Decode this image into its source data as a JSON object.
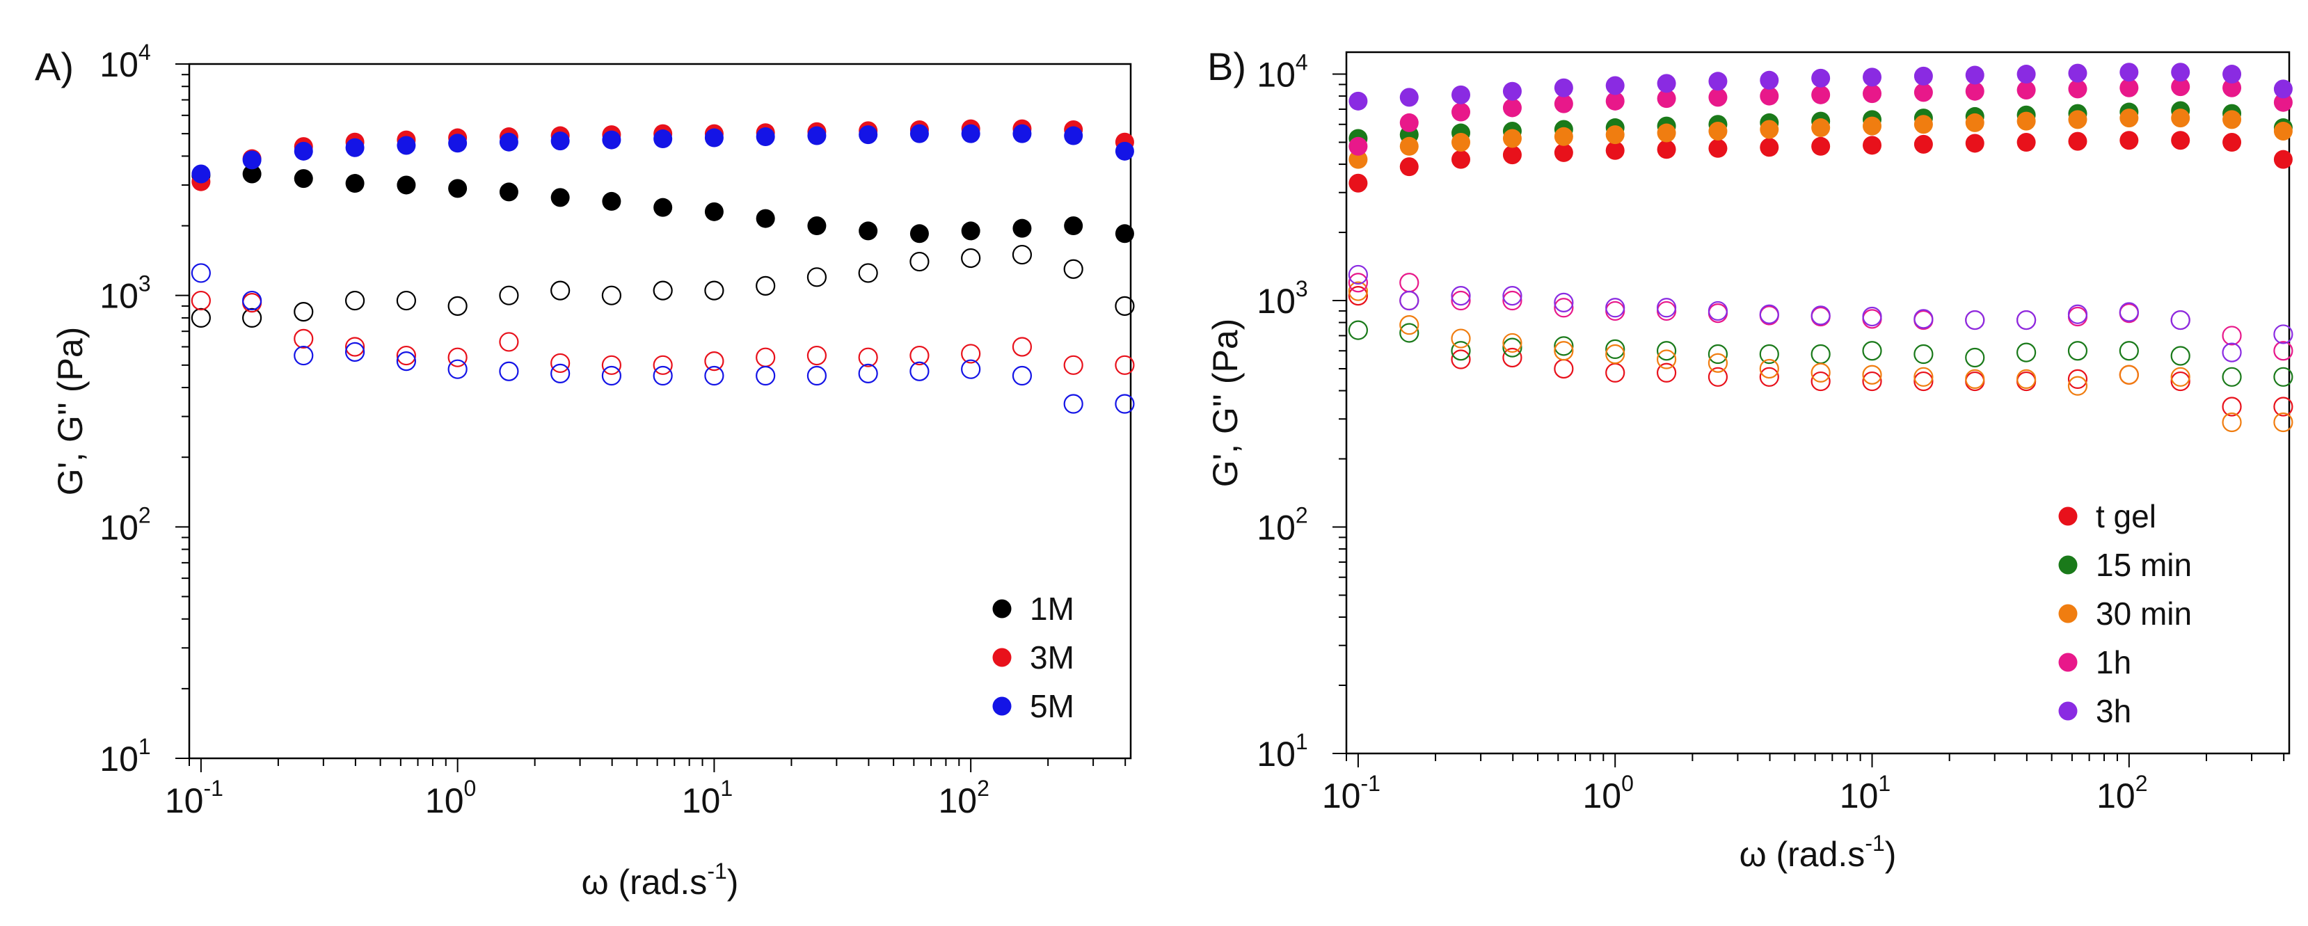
{
  "figure": {
    "panels": [
      "A)",
      "B)"
    ]
  },
  "chart_data": [
    {
      "panel": "A)",
      "type": "scatter",
      "title": "",
      "xlabel": "ω (rad.s",
      "xlabel_superscript": "-1",
      "xlabel_suffix": ")",
      "ylabel": "G', G'' (Pa)",
      "xscale": "log",
      "yscale": "log",
      "xlim": [
        0.09,
        420
      ],
      "ylim": [
        10,
        10000
      ],
      "x_ticks": [
        {
          "value": 0.1,
          "base": "10",
          "exp": "-1"
        },
        {
          "value": 1,
          "base": "10",
          "exp": "0"
        },
        {
          "value": 10,
          "base": "10",
          "exp": "1"
        },
        {
          "value": 100,
          "base": "10",
          "exp": "2"
        }
      ],
      "y_ticks": [
        {
          "value": 10,
          "base": "10",
          "exp": "1"
        },
        {
          "value": 100,
          "base": "10",
          "exp": "2"
        },
        {
          "value": 1000,
          "base": "10",
          "exp": "3"
        },
        {
          "value": 10000,
          "base": "10",
          "exp": "4"
        }
      ],
      "legend_position": "bottom-right",
      "legend": [
        {
          "label": "1M",
          "color": "#000000"
        },
        {
          "label": "3M",
          "color": "#e8111b"
        },
        {
          "label": "5M",
          "color": "#1414e6"
        }
      ],
      "x": [
        0.1,
        0.158,
        0.251,
        0.398,
        0.631,
        1.0,
        1.585,
        2.512,
        3.981,
        6.31,
        10.0,
        15.85,
        25.12,
        39.81,
        63.1,
        100.0,
        158.5,
        251.2,
        398.1
      ],
      "series": [
        {
          "name": "1M G'",
          "legend": "1M",
          "modulus": "G'",
          "filled": true,
          "color": "#000000",
          "values": [
            3300,
            3350,
            3200,
            3050,
            3000,
            2900,
            2800,
            2650,
            2550,
            2400,
            2300,
            2150,
            2000,
            1900,
            1850,
            1900,
            1950,
            2000,
            1850
          ]
        },
        {
          "name": "3M G'",
          "legend": "3M",
          "modulus": "G'",
          "filled": true,
          "color": "#e8111b",
          "values": [
            3100,
            3900,
            4400,
            4600,
            4700,
            4800,
            4850,
            4900,
            4950,
            5000,
            5000,
            5050,
            5100,
            5150,
            5200,
            5250,
            5250,
            5200,
            4600
          ]
        },
        {
          "name": "5M G'",
          "legend": "5M",
          "modulus": "G'",
          "filled": true,
          "color": "#1414e6",
          "values": [
            3350,
            3850,
            4200,
            4350,
            4450,
            4550,
            4600,
            4650,
            4700,
            4750,
            4800,
            4850,
            4900,
            4950,
            5000,
            5000,
            5000,
            4900,
            4200
          ]
        },
        {
          "name": "1M G''",
          "legend": "1M",
          "modulus": "G''",
          "filled": false,
          "color": "#000000",
          "values": [
            800,
            800,
            850,
            950,
            950,
            900,
            1000,
            1050,
            1000,
            1050,
            1050,
            1100,
            1200,
            1250,
            1400,
            1450,
            1500,
            1300,
            900
          ]
        },
        {
          "name": "3M G''",
          "legend": "3M",
          "modulus": "G''",
          "filled": false,
          "color": "#e8111b",
          "values": [
            950,
            930,
            650,
            600,
            550,
            540,
            630,
            510,
            500,
            500,
            520,
            540,
            550,
            540,
            550,
            560,
            600,
            500,
            500
          ]
        },
        {
          "name": "5M G''",
          "legend": "5M",
          "modulus": "G''",
          "filled": false,
          "color": "#1414e6",
          "values": [
            1250,
            950,
            550,
            570,
            520,
            480,
            470,
            460,
            450,
            450,
            450,
            450,
            450,
            460,
            470,
            480,
            450,
            340,
            340
          ]
        }
      ]
    },
    {
      "panel": "B)",
      "type": "scatter",
      "title": "",
      "xlabel": "ω (rad.s",
      "xlabel_superscript": "-1",
      "xlabel_suffix": ")",
      "ylabel": "G', G'' (Pa)",
      "xscale": "log",
      "yscale": "log",
      "xlim": [
        0.09,
        420
      ],
      "ylim": [
        10,
        12500
      ],
      "x_ticks": [
        {
          "value": 0.1,
          "base": "10",
          "exp": "-1"
        },
        {
          "value": 1,
          "base": "10",
          "exp": "0"
        },
        {
          "value": 10,
          "base": "10",
          "exp": "1"
        },
        {
          "value": 100,
          "base": "10",
          "exp": "2"
        }
      ],
      "y_ticks": [
        {
          "value": 10,
          "base": "10",
          "exp": "1"
        },
        {
          "value": 100,
          "base": "10",
          "exp": "2"
        },
        {
          "value": 1000,
          "base": "10",
          "exp": "3"
        },
        {
          "value": 10000,
          "base": "10",
          "exp": "4"
        }
      ],
      "legend_position": "bottom-right",
      "legend": [
        {
          "label": "t gel",
          "color": "#e8111b"
        },
        {
          "label": "15 min",
          "color": "#1a7a1a"
        },
        {
          "label": "30 min",
          "color": "#f07d10"
        },
        {
          "label": "1h",
          "color": "#e8188a"
        },
        {
          "label": "3h",
          "color": "#8a2be2"
        }
      ],
      "x": [
        0.1,
        0.158,
        0.251,
        0.398,
        0.631,
        1.0,
        1.585,
        2.512,
        3.981,
        6.31,
        10.0,
        15.85,
        25.12,
        39.81,
        63.1,
        100.0,
        158.5,
        251.2,
        398.1
      ],
      "series": [
        {
          "name": "t gel G'",
          "legend": "t gel",
          "modulus": "G'",
          "filled": true,
          "color": "#e8111b",
          "values": [
            3300,
            3900,
            4200,
            4400,
            4500,
            4600,
            4650,
            4700,
            4750,
            4800,
            4850,
            4900,
            4950,
            5000,
            5050,
            5100,
            5100,
            5000,
            4200
          ]
        },
        {
          "name": "15 min G'",
          "legend": "15 min",
          "modulus": "G'",
          "filled": true,
          "color": "#1a7a1a",
          "values": [
            5200,
            5400,
            5500,
            5600,
            5700,
            5800,
            5900,
            6000,
            6100,
            6200,
            6300,
            6400,
            6500,
            6600,
            6700,
            6800,
            6900,
            6700,
            5800
          ]
        },
        {
          "name": "30 min G'",
          "legend": "30 min",
          "modulus": "G'",
          "filled": true,
          "color": "#f07d10",
          "values": [
            4200,
            4800,
            5000,
            5200,
            5300,
            5400,
            5500,
            5600,
            5700,
            5800,
            5900,
            6000,
            6100,
            6200,
            6300,
            6400,
            6400,
            6300,
            5600
          ]
        },
        {
          "name": "1h G'",
          "legend": "1h",
          "modulus": "G'",
          "filled": true,
          "color": "#e8188a",
          "values": [
            4800,
            6100,
            6800,
            7100,
            7400,
            7600,
            7800,
            7900,
            8000,
            8100,
            8200,
            8300,
            8400,
            8500,
            8600,
            8700,
            8800,
            8700,
            7500
          ]
        },
        {
          "name": "3h G'",
          "legend": "3h",
          "modulus": "G'",
          "filled": true,
          "color": "#8a2be2",
          "values": [
            7600,
            7900,
            8100,
            8400,
            8700,
            8900,
            9100,
            9300,
            9400,
            9600,
            9700,
            9800,
            9900,
            10000,
            10100,
            10200,
            10200,
            10000,
            8600
          ]
        },
        {
          "name": "t gel G''",
          "legend": "t gel",
          "modulus": "G''",
          "filled": false,
          "color": "#e8111b",
          "values": [
            1050,
            1000,
            550,
            560,
            500,
            480,
            480,
            460,
            460,
            440,
            440,
            440,
            440,
            440,
            450,
            470,
            440,
            340,
            340
          ]
        },
        {
          "name": "15 min G''",
          "legend": "15 min",
          "modulus": "G''",
          "filled": false,
          "color": "#1a7a1a",
          "values": [
            740,
            720,
            600,
            620,
            630,
            610,
            600,
            580,
            580,
            580,
            600,
            580,
            560,
            590,
            600,
            600,
            570,
            460,
            460
          ]
        },
        {
          "name": "30 min G''",
          "legend": "30 min",
          "modulus": "G''",
          "filled": false,
          "color": "#f07d10",
          "values": [
            1100,
            780,
            680,
            650,
            600,
            580,
            550,
            530,
            500,
            480,
            470,
            460,
            450,
            450,
            420,
            470,
            460,
            290,
            290
          ]
        },
        {
          "name": "1h G''",
          "legend": "1h",
          "modulus": "G''",
          "filled": false,
          "color": "#e8188a",
          "values": [
            1200,
            1200,
            1000,
            1000,
            930,
            900,
            900,
            880,
            860,
            850,
            830,
            820,
            820,
            820,
            850,
            880,
            820,
            700,
            600
          ]
        },
        {
          "name": "3h G''",
          "legend": "3h",
          "modulus": "G''",
          "filled": false,
          "color": "#8a2be2",
          "values": [
            1300,
            1000,
            1050,
            1050,
            980,
            930,
            930,
            900,
            870,
            860,
            850,
            830,
            820,
            820,
            870,
            890,
            820,
            590,
            710
          ]
        }
      ]
    }
  ]
}
